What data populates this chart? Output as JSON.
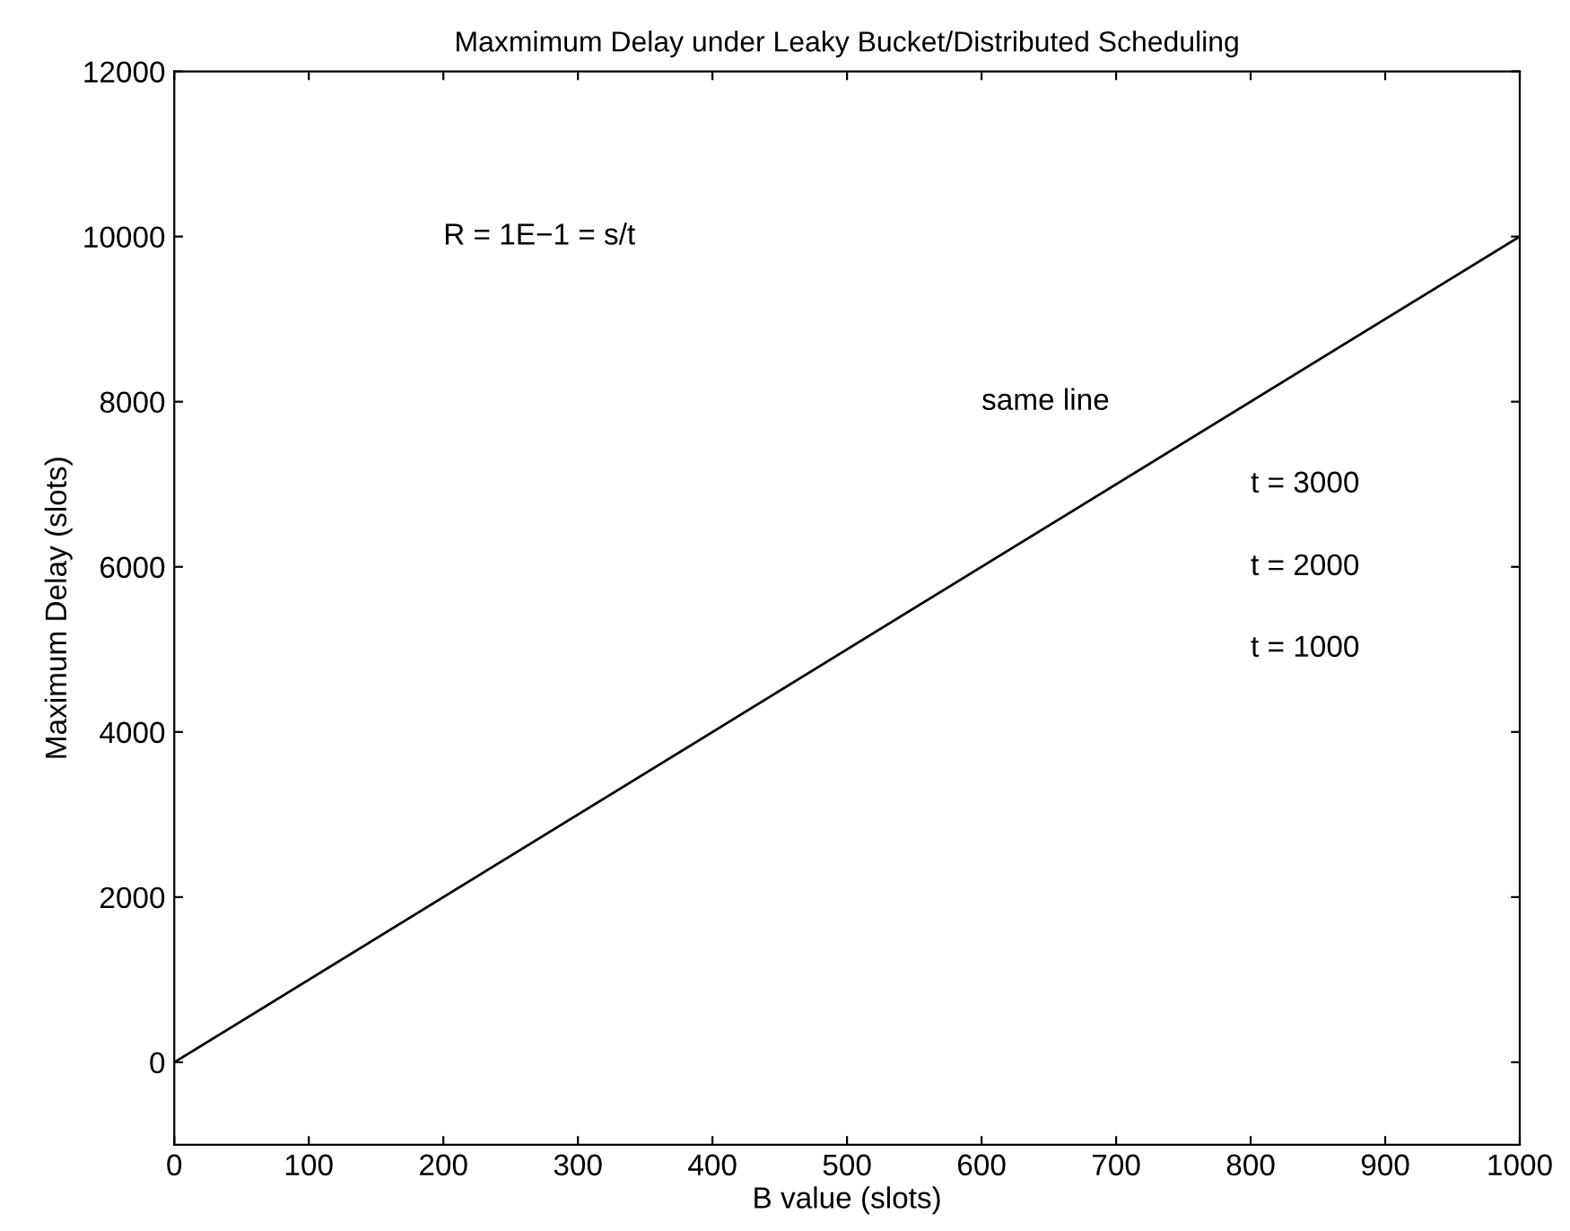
{
  "chart_data": {
    "type": "line",
    "title": "Maxmimum Delay under Leaky Bucket/Distributed Scheduling",
    "xlabel": "B value (slots)",
    "ylabel": "Maximum Delay (slots)",
    "x": [
      0,
      1000
    ],
    "series": [
      {
        "color": "#000000",
        "values": [
          0,
          10000
        ]
      }
    ],
    "xlim": [
      0,
      1000
    ],
    "xticks": [
      0,
      100,
      200,
      300,
      400,
      500,
      600,
      700,
      800,
      900,
      1000
    ],
    "ylim": [
      -1000,
      12000
    ],
    "yticks": [
      0,
      2000,
      4000,
      6000,
      8000,
      10000,
      12000
    ],
    "grid": false,
    "legend": false,
    "marker": "none",
    "line_style": "solid",
    "annotations": [
      "R = 1E−1 = s/t",
      "same line",
      "t = 3000",
      "t = 2000",
      "t = 1000"
    ]
  }
}
